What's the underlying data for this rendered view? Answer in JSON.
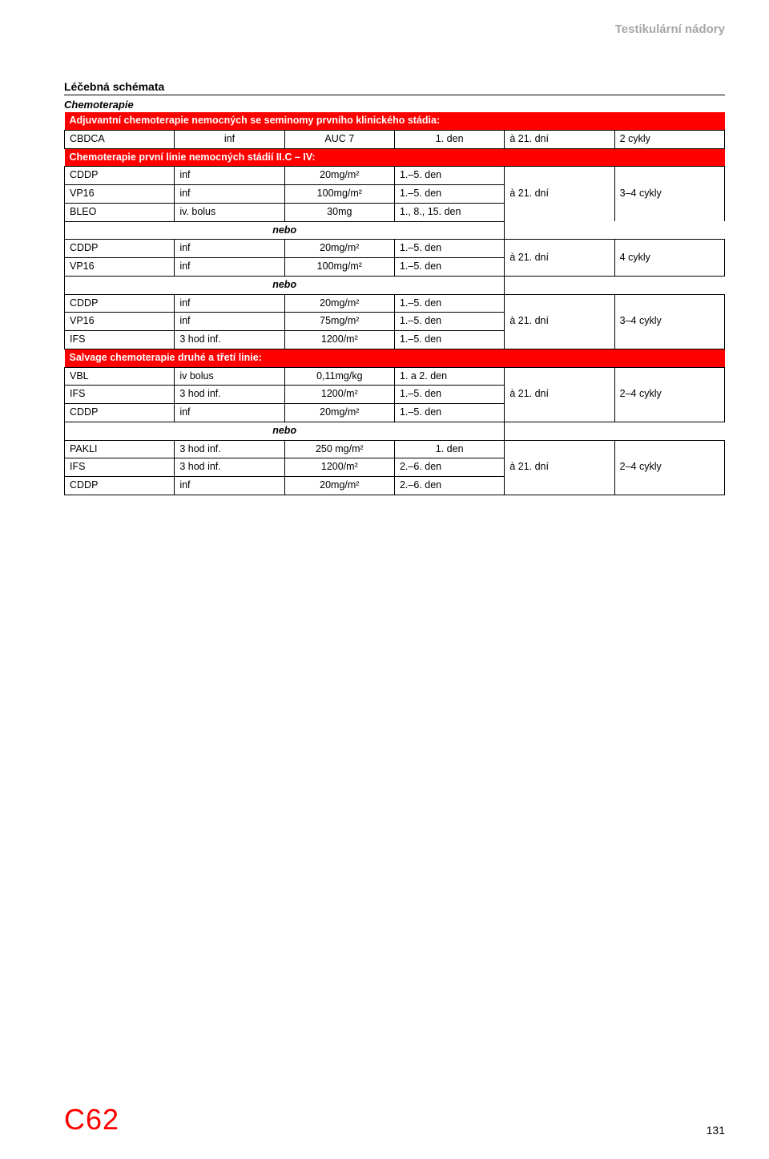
{
  "header": "Testikulární nádory",
  "section_title": "Léčebná schémata",
  "subhead": "Chemoterapie",
  "redband1": "Adjuvantní chemoterapie nemocných se seminomy prvního klinického stádia:",
  "row_cbdca": {
    "drug": "CBDCA",
    "route": "inf",
    "dose": "AUC 7",
    "day": "1. den",
    "int": "à 21. dní",
    "cyc": "2 cykly"
  },
  "redband2": "Chemoterapie první linie nemocných stádií II.C – IV:",
  "block1": {
    "r1": {
      "drug": "CDDP",
      "route": "inf",
      "dose": "20mg/m²",
      "day": "1.–5. den"
    },
    "r2": {
      "drug": "VP16",
      "route": "inf",
      "dose": "100mg/m²",
      "day": "1.–5. den"
    },
    "r3": {
      "drug": "BLEO",
      "route": "iv. bolus",
      "dose": "30mg",
      "day": "1., 8., 15. den"
    },
    "int": "à 21. dní",
    "cyc": "3–4 cykly"
  },
  "nebo": "nebo",
  "block2": {
    "r1": {
      "drug": "CDDP",
      "route": "inf",
      "dose": "20mg/m²",
      "day": "1.–5. den"
    },
    "r2": {
      "drug": "VP16",
      "route": "inf",
      "dose": "100mg/m²",
      "day": "1.–5. den"
    },
    "int": "à 21. dní",
    "cyc": "4 cykly"
  },
  "block3": {
    "r1": {
      "drug": "CDDP",
      "route": "inf",
      "dose": "20mg/m²",
      "day": "1.–5. den"
    },
    "r2": {
      "drug": "VP16",
      "route": "inf",
      "dose": "75mg/m²",
      "day": "1.–5. den"
    },
    "r3": {
      "drug": "IFS",
      "route": "3 hod inf.",
      "dose": "1200/m²",
      "day": "1.–5. den"
    },
    "int": "à 21. dní",
    "cyc": "3–4 cykly"
  },
  "redband3": "Salvage chemoterapie druhé a třetí linie:",
  "block4": {
    "r1": {
      "drug": "VBL",
      "route": "iv bolus",
      "dose": "0,11mg/kg",
      "day": "1. a 2. den"
    },
    "r2": {
      "drug": "IFS",
      "route": "3 hod inf.",
      "dose": "1200/m²",
      "day": "1.–5. den"
    },
    "r3": {
      "drug": "CDDP",
      "route": "inf",
      "dose": "20mg/m²",
      "day": "1.–5. den"
    },
    "int": "à 21. dní",
    "cyc": "2–4 cykly"
  },
  "block5": {
    "r1": {
      "drug": "PAKLI",
      "route": "3 hod inf.",
      "dose": "250 mg/m²",
      "day": "1. den"
    },
    "r2": {
      "drug": "IFS",
      "route": "3 hod inf.",
      "dose": "1200/m²",
      "day": "2.–6. den"
    },
    "r3": {
      "drug": "CDDP",
      "route": "inf",
      "dose": "20mg/m²",
      "day": "2.–6. den"
    },
    "int": "à 21. dní",
    "cyc": "2–4 cykly"
  },
  "footer": {
    "code": "C62",
    "page": "131"
  }
}
